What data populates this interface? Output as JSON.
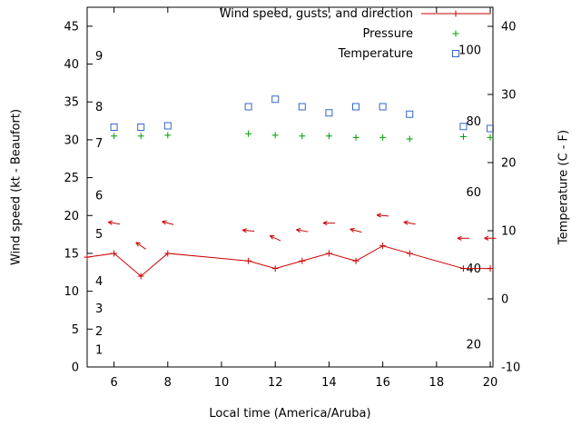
{
  "chart_data": {
    "type": "line",
    "title": "",
    "xlabel": "Local time (America/Aruba)",
    "ylabel_left": "Wind speed (kt - Beaufort)",
    "ylabel_right": "Temperature (C - F)",
    "x_range": [
      5,
      20.1
    ],
    "y_left_range": [
      0,
      47.5
    ],
    "y_right_range": [
      -10,
      42.8
    ],
    "x_ticks": [
      6,
      8,
      10,
      12,
      14,
      16,
      18,
      20
    ],
    "y_left_ticks": [
      0,
      5,
      10,
      15,
      20,
      25,
      30,
      35,
      40,
      45
    ],
    "y_right_ticks": [
      -10,
      0,
      10,
      20,
      30,
      40
    ],
    "grid": "off",
    "legend_position": "top-right-inside",
    "legend": [
      {
        "label": "Wind speed, gusts, and direction",
        "type": "line-plus",
        "color": "#cc0000"
      },
      {
        "label": "Pressure",
        "type": "plus",
        "color": "#00a000"
      },
      {
        "label": "Temperature",
        "type": "square",
        "color": "#3366cc"
      }
    ],
    "beaufort_labels": [
      {
        "label": "1",
        "kt": 2.2
      },
      {
        "label": "2",
        "kt": 4.7
      },
      {
        "label": "3",
        "kt": 7.7
      },
      {
        "label": "4",
        "kt": 11.3
      },
      {
        "label": "5",
        "kt": 17.5
      },
      {
        "label": "6",
        "kt": 22.6
      },
      {
        "label": "7",
        "kt": 29.5
      },
      {
        "label": "8",
        "kt": 34.3
      },
      {
        "label": "9",
        "kt": 41.0
      }
    ],
    "fahrenheit_labels": [
      {
        "label": "20",
        "c": -6.7
      },
      {
        "label": "40",
        "c": 4.4
      },
      {
        "label": "60",
        "c": 15.6
      },
      {
        "label": "80",
        "c": 26.0
      },
      {
        "label": "100",
        "c": 36.5
      }
    ],
    "series": {
      "wind_speed": {
        "name": "Wind speed (kt)",
        "color": "#cc0000",
        "points": [
          [
            5,
            14.5
          ],
          [
            6,
            15
          ],
          [
            7,
            12
          ],
          [
            8,
            15
          ],
          [
            11,
            14
          ],
          [
            12,
            13
          ],
          [
            13,
            14
          ],
          [
            14,
            15
          ],
          [
            15,
            14
          ],
          [
            16,
            16
          ],
          [
            17,
            15
          ],
          [
            19,
            13
          ],
          [
            20,
            13
          ]
        ]
      },
      "gust_arrows": {
        "name": "Gusts and direction (kt)",
        "color": "#cc0000",
        "arrows": [
          {
            "x": 6,
            "kt": 19,
            "angle": 190
          },
          {
            "x": 7,
            "kt": 16,
            "angle": 215
          },
          {
            "x": 8,
            "kt": 19,
            "angle": 195
          },
          {
            "x": 11,
            "kt": 18,
            "angle": 185
          },
          {
            "x": 12,
            "kt": 17,
            "angle": 205
          },
          {
            "x": 13,
            "kt": 18,
            "angle": 190
          },
          {
            "x": 14,
            "kt": 19,
            "angle": 180
          },
          {
            "x": 15,
            "kt": 18,
            "angle": 195
          },
          {
            "x": 16,
            "kt": 20,
            "angle": 185
          },
          {
            "x": 17,
            "kt": 19,
            "angle": 190
          },
          {
            "x": 19,
            "kt": 17,
            "angle": 180
          },
          {
            "x": 20,
            "kt": 17,
            "angle": 180
          }
        ]
      },
      "pressure": {
        "name": "Pressure",
        "color": "#00a000",
        "points": [
          [
            6,
            30.5
          ],
          [
            7,
            30.5
          ],
          [
            8,
            30.6
          ],
          [
            11,
            30.8
          ],
          [
            12,
            30.6
          ],
          [
            13,
            30.5
          ],
          [
            14,
            30.5
          ],
          [
            15,
            30.3
          ],
          [
            16,
            30.3
          ],
          [
            17,
            30.1
          ],
          [
            19,
            30.4
          ],
          [
            20,
            30.3
          ]
        ]
      },
      "temperature": {
        "name": "Temperature (C)",
        "color": "#3366cc",
        "points_c": [
          [
            6,
            25.2
          ],
          [
            7,
            25.2
          ],
          [
            8,
            25.4
          ],
          [
            11,
            28.2
          ],
          [
            12,
            29.3
          ],
          [
            13,
            28.2
          ],
          [
            14,
            27.3
          ],
          [
            15,
            28.2
          ],
          [
            16,
            28.2
          ],
          [
            17,
            27.1
          ],
          [
            19,
            25.3
          ],
          [
            20,
            25.0
          ]
        ]
      }
    }
  }
}
